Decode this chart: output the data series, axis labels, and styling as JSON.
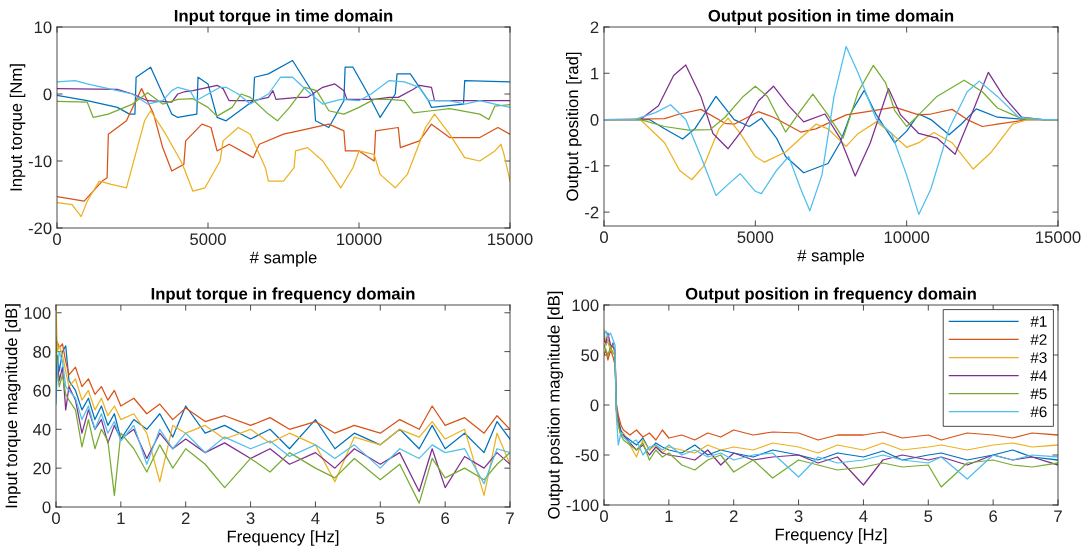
{
  "chart_data": [
    {
      "type": "line",
      "title": "Input torque in time domain",
      "xlabel": "# sample",
      "ylabel": "Input torque [Nm]",
      "xlim": [
        0,
        15000
      ],
      "xticks": [
        0,
        5000,
        10000,
        15000
      ],
      "ylim": [
        -20,
        10
      ],
      "yticks": [
        -20,
        -10,
        0,
        10
      ],
      "grid": false,
      "legend": false,
      "series": [
        {
          "color": "#0072bd",
          "x": [
            0,
            1000,
            2000,
            2400,
            2580,
            2620,
            3100,
            3800,
            4000,
            4630,
            4670,
            5000,
            5300,
            5600,
            6500,
            6540,
            7000,
            7800,
            8500,
            8560,
            9000,
            9500,
            9540,
            9800,
            10300,
            10700,
            11200,
            11260,
            11700,
            12300,
            12400,
            13460,
            13500,
            15000
          ],
          "values": [
            -0.2,
            -1,
            -2,
            -3,
            -3,
            2.5,
            4,
            -3,
            -3.5,
            -3,
            2.5,
            1.5,
            -3.5,
            -4,
            -1,
            2.5,
            3,
            5,
            0,
            -4,
            -5,
            -1,
            4,
            4,
            0,
            -3.5,
            0,
            3,
            3,
            -1,
            -2,
            -1.5,
            2,
            1.8
          ]
        },
        {
          "color": "#d95319",
          "x": [
            0,
            900,
            1500,
            1660,
            1700,
            2300,
            2800,
            3200,
            3500,
            3800,
            4200,
            4260,
            4800,
            5100,
            5300,
            5700,
            6500,
            6700,
            7500,
            8000,
            9000,
            9500,
            9550,
            10000,
            10500,
            10550,
            11300,
            11370,
            12000,
            12400,
            13000,
            14000,
            14600,
            15000
          ],
          "values": [
            -15.3,
            -16,
            -13,
            -12.5,
            -6,
            -4,
            0.8,
            -3,
            -8,
            -11.5,
            -10.5,
            -7,
            -4.5,
            -5,
            -8.5,
            -7.5,
            -9.5,
            -7.5,
            -6,
            -5.5,
            -4.5,
            -5.5,
            -8.5,
            -8.5,
            -10,
            -5.5,
            -5,
            -8,
            -7,
            -4.5,
            -6.5,
            -6.5,
            -5,
            -6
          ]
        },
        {
          "color": "#edb120",
          "x": [
            0,
            500,
            800,
            1000,
            1400,
            1800,
            2300,
            2900,
            3100,
            3600,
            4100,
            4200,
            4500,
            4900,
            5400,
            5500,
            6000,
            6400,
            6900,
            7000,
            7500,
            7850,
            7900,
            8300,
            8800,
            9400,
            9800,
            10000,
            10500,
            10700,
            11200,
            11600,
            12200,
            12500,
            13000,
            13500,
            14000,
            14500,
            14700,
            14800,
            15000
          ],
          "values": [
            -16.2,
            -16.5,
            -18.3,
            -16,
            -13,
            -13.5,
            -14,
            -4,
            -2.5,
            -6,
            -10,
            -11,
            -14.5,
            -14,
            -10,
            -7,
            -5,
            -6,
            -11,
            -13,
            -13,
            -11,
            -8.5,
            -8,
            -10,
            -14,
            -11,
            -8.5,
            -9,
            -12,
            -14,
            -12,
            -5,
            -3,
            -6,
            -9.5,
            -10,
            -8.5,
            -7.5,
            -9,
            -13
          ]
        },
        {
          "color": "#7e2f8e",
          "x": [
            0,
            2000,
            2500,
            3000,
            3800,
            4000,
            4200,
            4500,
            5000,
            5300,
            5500,
            5700,
            6500,
            7000,
            7150,
            7250,
            8000,
            8300,
            8800,
            9200,
            9500,
            9600,
            10500,
            11000,
            11300,
            11800,
            12000,
            12400,
            12500,
            14000,
            15000
          ],
          "values": [
            0.8,
            0.7,
            0,
            -1,
            -1.2,
            0,
            0.3,
            0.5,
            1,
            1.3,
            0.8,
            -1,
            -1,
            -0.5,
            0.5,
            -0.8,
            -0.5,
            -0.5,
            1,
            1.5,
            0.5,
            -0.8,
            -0.8,
            -0.5,
            -0.5,
            0.7,
            1.3,
            1,
            -1,
            -1,
            -1
          ]
        },
        {
          "color": "#77ac30",
          "x": [
            0,
            1000,
            1200,
            1700,
            2500,
            3000,
            3200,
            3500,
            4000,
            4500,
            5000,
            5300,
            5800,
            6100,
            6400,
            7000,
            7300,
            7700,
            8200,
            8600,
            9000,
            9500,
            10000,
            10500,
            11000,
            11500,
            11800,
            12400,
            13000,
            14000,
            14300,
            14500,
            15000
          ],
          "values": [
            -1.1,
            -1.2,
            -3.5,
            -3,
            -1.5,
            0.2,
            -0.5,
            -1.5,
            -0.8,
            -0.7,
            -2,
            -3.3,
            -2,
            0,
            -0.5,
            -3,
            -4,
            -2,
            1,
            0.5,
            -2.5,
            -3,
            -2,
            -0.8,
            -0.8,
            -1,
            -2.8,
            -2.5,
            -2.2,
            -3,
            -3.8,
            -1.8,
            -1.6
          ]
        },
        {
          "color": "#4dbeee",
          "x": [
            0,
            600,
            1000,
            2000,
            2500,
            3000,
            3500,
            3800,
            4000,
            4400,
            4600,
            5000,
            5400,
            5600,
            6000,
            6400,
            7000,
            7400,
            7800,
            8400,
            8800,
            9400,
            10000,
            10400,
            11000,
            11500,
            12000,
            12300,
            13000,
            13500,
            14000,
            14500,
            15000
          ],
          "values": [
            1.8,
            2,
            1.5,
            0.5,
            0,
            -1.5,
            -1,
            0.5,
            1,
            0.5,
            -1,
            0,
            1,
            1,
            0,
            -1.5,
            0,
            2.5,
            2.5,
            0,
            -1.5,
            -0.8,
            -1,
            0,
            2,
            1.8,
            1,
            -1,
            -1,
            -1.5,
            -1,
            -1.5,
            -2
          ]
        }
      ]
    },
    {
      "type": "line",
      "title": "Output position in time domain",
      "xlabel": "# sample",
      "ylabel": "Output position [rad]",
      "xlim": [
        0,
        15000
      ],
      "xticks": [
        0,
        5000,
        10000,
        15000
      ],
      "ylim": [
        -2.3,
        2
      ],
      "yticks": [
        -2,
        -1,
        0,
        1,
        2
      ],
      "grid": false,
      "legend": false,
      "series": [
        {
          "color": "#0072bd",
          "x": [
            0,
            1500,
            2000,
            2600,
            3000,
            3700,
            4300,
            4800,
            5200,
            5700,
            6000,
            6600,
            7400,
            7800,
            8200,
            8600,
            9000,
            9600,
            10000,
            10400,
            10800,
            11400,
            11800,
            12300,
            13000,
            14000,
            15000
          ],
          "values": [
            0,
            0,
            -0.2,
            -0.42,
            -0.2,
            0.5,
            0,
            -0.15,
            0.03,
            -0.4,
            -0.8,
            -1.15,
            -0.95,
            -0.5,
            0.2,
            0.63,
            0.1,
            -0.5,
            -0.25,
            0.12,
            0,
            -0.33,
            -0.1,
            0.23,
            0.05,
            0,
            0
          ]
        },
        {
          "color": "#d95319",
          "x": [
            0,
            2000,
            2500,
            3200,
            4000,
            4300,
            5100,
            5600,
            6500,
            7000,
            8000,
            8700,
            9600,
            10400,
            10800,
            11500,
            12000,
            12500,
            13000,
            14000,
            15000
          ],
          "values": [
            0,
            0.02,
            0.12,
            0.22,
            -0.08,
            -0.1,
            0.17,
            0.05,
            -0.27,
            -0.2,
            0.1,
            0.17,
            0.27,
            0.1,
            0.12,
            0.22,
            0,
            -0.15,
            -0.1,
            0,
            0
          ]
        },
        {
          "color": "#edb120",
          "x": [
            0,
            1200,
            2000,
            2500,
            2900,
            3300,
            3800,
            4100,
            4500,
            5000,
            5300,
            6000,
            7000,
            7400,
            8000,
            8400,
            9000,
            9500,
            10000,
            10400,
            10900,
            11500,
            12200,
            12800,
            13500,
            14000,
            15000
          ],
          "values": [
            0,
            0,
            -0.5,
            -1.1,
            -1.3,
            -1.0,
            -0.2,
            0.03,
            -0.3,
            -0.8,
            -0.92,
            -0.7,
            -0.1,
            -0.2,
            -0.58,
            -0.3,
            -0.05,
            -0.3,
            -0.6,
            -0.5,
            -0.28,
            -0.5,
            -1.07,
            -0.7,
            -0.1,
            0,
            0
          ]
        },
        {
          "color": "#7e2f8e",
          "x": [
            0,
            1200,
            1800,
            2300,
            2700,
            3200,
            3600,
            4100,
            4600,
            5100,
            5600,
            6100,
            6600,
            7300,
            7800,
            8300,
            8800,
            9400,
            9800,
            10400,
            11000,
            11600,
            12200,
            12700,
            13200,
            13800,
            14500,
            15000
          ],
          "values": [
            0,
            0,
            0.3,
            0.95,
            1.18,
            0.5,
            -0.3,
            -0.63,
            -0.2,
            0.4,
            0.72,
            0.3,
            -0.05,
            0.12,
            -0.4,
            -1.22,
            -0.5,
            0.67,
            0.1,
            -0.3,
            -0.4,
            -0.75,
            0.2,
            1.02,
            0.5,
            0.05,
            0,
            0
          ]
        },
        {
          "color": "#77ac30",
          "x": [
            0,
            1200,
            2000,
            2800,
            3500,
            4000,
            4600,
            5000,
            5400,
            6000,
            6500,
            6900,
            7400,
            7900,
            8400,
            8900,
            9300,
            9600,
            10000,
            10400,
            11000,
            11900,
            12500,
            13000,
            13800,
            14500,
            15000
          ],
          "values": [
            0,
            0,
            -0.15,
            -0.23,
            -0.22,
            0.05,
            0.5,
            0.72,
            0.5,
            -0.27,
            0.2,
            0.55,
            0.1,
            -0.4,
            0.6,
            1.17,
            0.8,
            0.2,
            -0.15,
            0.1,
            0.5,
            0.85,
            0.6,
            0.25,
            0.02,
            0,
            0
          ]
        },
        {
          "color": "#4dbeee",
          "x": [
            0,
            1000,
            1700,
            2200,
            2700,
            3200,
            3700,
            4100,
            4500,
            5000,
            5200,
            5700,
            6100,
            6500,
            6800,
            7200,
            7600,
            8000,
            8400,
            9000,
            9500,
            10000,
            10400,
            10800,
            11400,
            12000,
            12400,
            13000,
            13700,
            14500,
            15000
          ],
          "values": [
            0,
            0,
            0.15,
            0.32,
            0,
            -0.8,
            -1.64,
            -1.4,
            -1.17,
            -1.55,
            -1.6,
            -1.1,
            -0.8,
            -1.5,
            -1.97,
            -1.2,
            0.5,
            1.58,
            1.0,
            0,
            -0.3,
            -1.2,
            -2.05,
            -1.5,
            -0.2,
            0.6,
            0.83,
            0.5,
            0.05,
            0,
            0
          ]
        }
      ]
    },
    {
      "type": "line",
      "title": "Input torque in frequency domain",
      "xlabel": "Frequency [Hz]",
      "ylabel": "Input torque magnitude [dB]",
      "xlim": [
        0,
        7
      ],
      "xticks": [
        0,
        1,
        2,
        3,
        4,
        5,
        6,
        7
      ],
      "ylim": [
        0,
        104
      ],
      "yticks": [
        0,
        20,
        40,
        60,
        80,
        100
      ],
      "grid": false,
      "legend": false,
      "x": [
        0,
        0.02,
        0.05,
        0.1,
        0.15,
        0.2,
        0.3,
        0.4,
        0.5,
        0.6,
        0.7,
        0.8,
        0.9,
        1.0,
        1.2,
        1.4,
        1.6,
        1.8,
        2.0,
        2.3,
        2.6,
        3.0,
        3.3,
        3.6,
        4.0,
        4.3,
        4.6,
        5.0,
        5.3,
        5.6,
        5.8,
        6.0,
        6.3,
        6.6,
        6.8,
        7.0
      ],
      "series": [
        {
          "color": "#0072bd",
          "values": [
            65,
            78,
            70,
            80,
            83,
            65,
            60,
            50,
            56,
            45,
            52,
            42,
            48,
            35,
            45,
            40,
            48,
            36,
            52,
            38,
            42,
            35,
            40,
            30,
            45,
            30,
            38,
            32,
            40,
            30,
            42,
            30,
            38,
            28,
            44,
            35
          ]
        },
        {
          "color": "#d95319",
          "values": [
            80,
            85,
            82,
            84,
            75,
            68,
            72,
            62,
            66,
            58,
            62,
            55,
            60,
            52,
            56,
            48,
            53,
            45,
            51,
            44,
            47,
            42,
            46,
            40,
            44,
            38,
            42,
            38,
            45,
            40,
            52,
            42,
            46,
            38,
            47,
            40
          ]
        },
        {
          "color": "#edb120",
          "values": [
            104,
            80,
            83,
            78,
            70,
            62,
            66,
            55,
            60,
            50,
            56,
            47,
            52,
            45,
            48,
            38,
            13,
            42,
            38,
            42,
            35,
            40,
            33,
            38,
            32,
            13,
            36,
            32,
            40,
            36,
            44,
            35,
            40,
            6,
            38,
            22
          ]
        },
        {
          "color": "#7e2f8e",
          "values": [
            60,
            75,
            65,
            72,
            50,
            62,
            55,
            38,
            50,
            40,
            45,
            33,
            42,
            35,
            40,
            25,
            38,
            30,
            35,
            28,
            33,
            25,
            30,
            22,
            28,
            20,
            30,
            22,
            28,
            8,
            30,
            10,
            26,
            20,
            28,
            22
          ]
        },
        {
          "color": "#77ac30",
          "values": [
            88,
            70,
            62,
            68,
            58,
            55,
            50,
            31,
            45,
            30,
            40,
            34,
            6,
            38,
            30,
            18,
            32,
            20,
            30,
            22,
            10,
            25,
            18,
            28,
            20,
            15,
            25,
            14,
            22,
            2,
            25,
            15,
            20,
            14,
            22,
            28
          ]
        },
        {
          "color": "#4dbeee",
          "values": [
            53,
            70,
            80,
            75,
            62,
            60,
            56,
            45,
            52,
            40,
            48,
            38,
            44,
            34,
            42,
            22,
            40,
            30,
            38,
            28,
            36,
            30,
            34,
            26,
            32,
            25,
            32,
            20,
            30,
            25,
            32,
            28,
            30,
            12,
            30,
            28
          ]
        }
      ]
    },
    {
      "type": "line",
      "title": "Output position in frequency domain",
      "xlabel": "Frequency [Hz]",
      "ylabel": "Output position magnitude [dB]",
      "xlim": [
        0,
        7
      ],
      "xticks": [
        0,
        1,
        2,
        3,
        4,
        5,
        6,
        7
      ],
      "ylim": [
        -100,
        100
      ],
      "yticks": [
        -100,
        -50,
        0,
        50,
        100
      ],
      "grid": false,
      "legend": "top right",
      "x": [
        0,
        0.03,
        0.06,
        0.1,
        0.14,
        0.17,
        0.19,
        0.22,
        0.26,
        0.3,
        0.4,
        0.5,
        0.6,
        0.7,
        0.8,
        0.9,
        1.0,
        1.2,
        1.4,
        1.6,
        1.8,
        2.0,
        2.3,
        2.6,
        3.0,
        3.3,
        3.6,
        4.0,
        4.3,
        4.6,
        5.0,
        5.2,
        5.6,
        6.0,
        6.3,
        6.6,
        7.0
      ],
      "series": [
        {
          "name": "#1",
          "color": "#0072bd",
          "values": [
            70,
            60,
            65,
            55,
            62,
            50,
            0,
            -15,
            -25,
            -30,
            -35,
            -40,
            -33,
            -45,
            -38,
            -42,
            -45,
            -48,
            -40,
            -50,
            -45,
            -48,
            -52,
            -45,
            -50,
            -55,
            -48,
            -52,
            -46,
            -55,
            -50,
            -48,
            -55,
            -50,
            -45,
            -52,
            -55
          ]
        },
        {
          "name": "#2",
          "color": "#d95319",
          "values": [
            50,
            55,
            45,
            55,
            48,
            40,
            2,
            -10,
            -20,
            -25,
            -30,
            -25,
            -32,
            -28,
            -35,
            -25,
            -33,
            -30,
            -35,
            -28,
            -32,
            -25,
            -30,
            -27,
            -28,
            -35,
            -30,
            -30,
            -27,
            -33,
            -30,
            -35,
            -28,
            -30,
            -33,
            -28,
            -30
          ]
        },
        {
          "name": "#3",
          "color": "#edb120",
          "values": [
            75,
            60,
            65,
            55,
            60,
            50,
            -5,
            -20,
            -30,
            -28,
            -40,
            -52,
            -35,
            -45,
            -40,
            -48,
            -42,
            -45,
            -48,
            -40,
            -45,
            -42,
            -45,
            -38,
            -42,
            -48,
            -40,
            -45,
            -38,
            -45,
            -42,
            -40,
            -45,
            -40,
            -38,
            -42,
            -40
          ]
        },
        {
          "name": "#4",
          "color": "#7e2f8e",
          "values": [
            65,
            62,
            72,
            60,
            58,
            55,
            -5,
            -15,
            -30,
            -30,
            -38,
            -45,
            -40,
            -50,
            -42,
            -48,
            -50,
            -52,
            -55,
            -45,
            -60,
            -48,
            -55,
            -52,
            -50,
            -58,
            -52,
            -80,
            -55,
            -50,
            -55,
            -52,
            -60,
            -50,
            -55,
            -52,
            -60
          ]
        },
        {
          "name": "#5",
          "color": "#77ac30",
          "values": [
            60,
            55,
            50,
            58,
            52,
            50,
            -5,
            -20,
            -30,
            -35,
            -40,
            -45,
            -38,
            -55,
            -45,
            -52,
            -48,
            -60,
            -65,
            -55,
            -50,
            -67,
            -55,
            -73,
            -55,
            -60,
            -65,
            -62,
            -58,
            -62,
            -60,
            -82,
            -58,
            -55,
            -60,
            -62,
            -58
          ]
        },
        {
          "name": "#6",
          "color": "#4dbeee",
          "values": [
            70,
            74,
            68,
            72,
            65,
            60,
            -10,
            -40,
            -28,
            -32,
            -38,
            -35,
            -50,
            -42,
            -40,
            -45,
            -40,
            -50,
            -45,
            -52,
            -48,
            -55,
            -50,
            -48,
            -72,
            -52,
            -58,
            -55,
            -50,
            -55,
            -58,
            -52,
            -74,
            -50,
            -55,
            -50,
            -52
          ]
        }
      ]
    }
  ]
}
